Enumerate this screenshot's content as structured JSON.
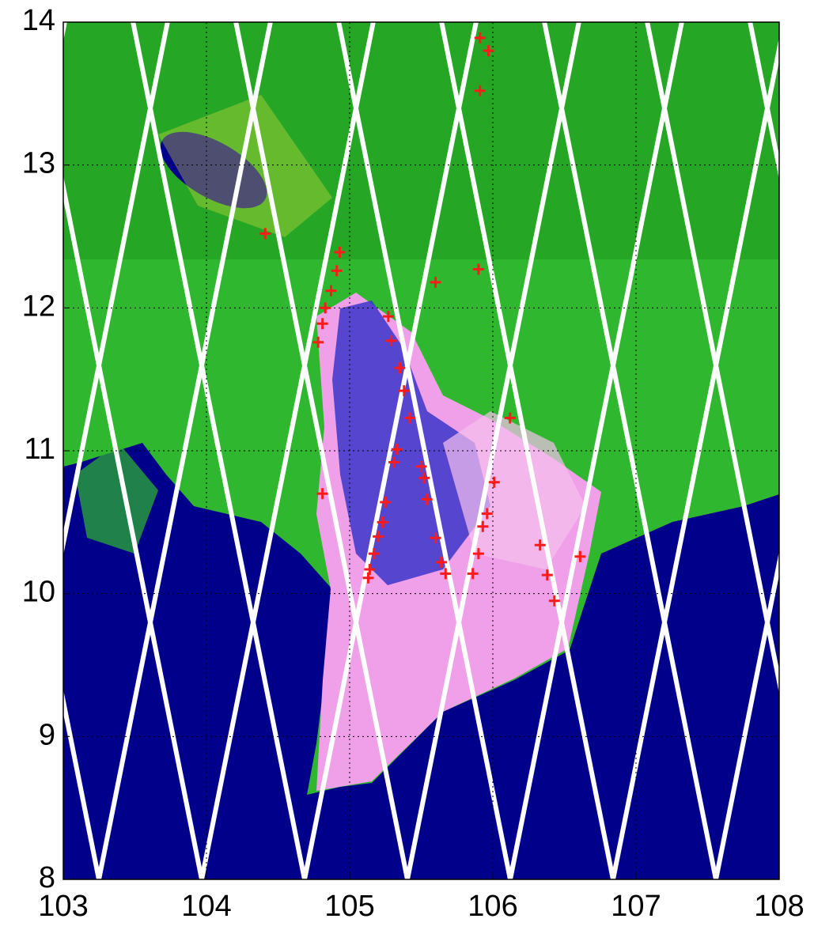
{
  "chart_data": {
    "type": "scatter",
    "xlim": [
      103,
      108
    ],
    "ylim": [
      8,
      14
    ],
    "xticks": [
      103,
      104,
      105,
      106,
      107,
      108
    ],
    "yticks": [
      8,
      9,
      10,
      11,
      12,
      13,
      14
    ],
    "grid": true,
    "color": "#ff1a1a",
    "x": [
      104.41,
      105.91,
      105.97,
      105.91,
      105.9,
      105.6,
      104.93,
      104.91,
      104.87,
      104.83,
      104.81,
      104.78,
      105.27,
      105.29,
      105.35,
      105.38,
      105.42,
      106.12,
      104.81,
      105.33,
      105.31,
      105.25,
      105.23,
      105.2,
      105.17,
      105.14,
      105.13,
      105.5,
      105.52,
      105.54,
      105.6,
      105.64,
      105.67,
      106.01,
      105.96,
      105.93,
      105.9,
      105.86,
      106.33,
      106.38,
      106.43,
      106.61
    ],
    "values": [
      12.52,
      13.89,
      13.8,
      13.52,
      12.27,
      12.18,
      12.39,
      12.26,
      12.12,
      12.0,
      11.89,
      11.76,
      11.94,
      11.77,
      11.58,
      11.42,
      11.23,
      11.23,
      10.7,
      11.01,
      10.92,
      10.64,
      10.5,
      10.4,
      10.28,
      10.17,
      10.11,
      10.89,
      10.81,
      10.66,
      10.39,
      10.22,
      10.14,
      10.78,
      10.56,
      10.47,
      10.28,
      10.14,
      10.34,
      10.13,
      9.95,
      10.26
    ]
  }
}
